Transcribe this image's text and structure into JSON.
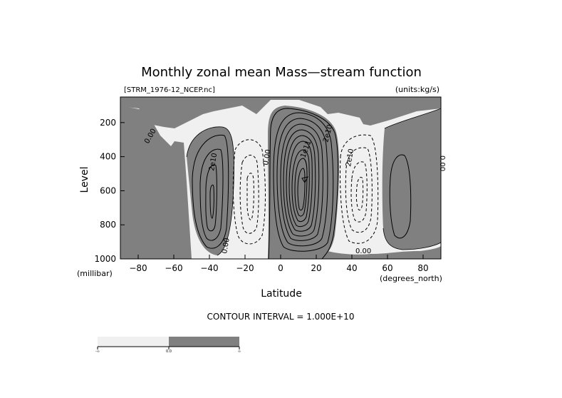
{
  "chart_data": {
    "type": "contour",
    "title": "Monthly zonal mean Mass—stream function",
    "subtitle_left": "[STRM_1976-12_NCEP.nc]",
    "subtitle_right": "(units:kg/s)",
    "xlabel": "Latitude",
    "ylabel": "Level",
    "x_unit": "(degrees_north)",
    "y_unit": "(millibar)",
    "xlim": [
      -90,
      90
    ],
    "ylim": [
      1000,
      50
    ],
    "y_reversed": true,
    "x_ticks": [
      -80,
      -60,
      -40,
      -20,
      0,
      20,
      40,
      60,
      80
    ],
    "y_ticks": [
      200,
      400,
      600,
      800,
      1000
    ],
    "contour_interval_text": "CONTOUR INTERVAL = 1.000E+10",
    "contour_interval": 10000000000.0,
    "shading": {
      "negative_color": "#f0f0f0",
      "positive_color": "#808080",
      "negative_line_style": "dashed",
      "positive_line_style": "solid"
    },
    "contour_labels": [
      "0.00",
      "2e10",
      "0.00",
      "2e10",
      "1e11",
      "2e10",
      "0.00",
      "0.00",
      "0.00"
    ],
    "cells": [
      {
        "lat_center": -40,
        "level_center": 650,
        "peak": 50000000000.0,
        "sign": "positive"
      },
      {
        "lat_center": -15,
        "level_center": 600,
        "peak": -40000000000.0,
        "sign": "negative"
      },
      {
        "lat_center": 15,
        "level_center": 550,
        "peak": 180000000000.0,
        "sign": "positive"
      },
      {
        "lat_center": 48,
        "level_center": 650,
        "peak": -50000000000.0,
        "sign": "negative"
      },
      {
        "lat_center": 68,
        "level_center": 650,
        "peak": 10000000000.0,
        "sign": "positive"
      }
    ],
    "colorbar": {
      "labels": [
        "-∞",
        "0.0",
        "∞"
      ],
      "colors": [
        "#f0f0f0",
        "#808080"
      ]
    }
  }
}
